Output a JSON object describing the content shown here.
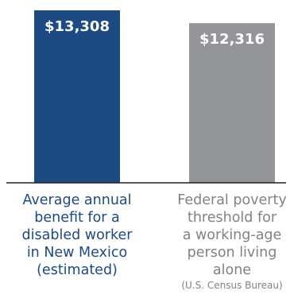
{
  "chart_data": {
    "type": "bar",
    "title": "",
    "xlabel": "",
    "ylabel": "",
    "ylim": [
      0,
      13308
    ],
    "grid": false,
    "legend": "none",
    "categories": [
      "Average annual benefit for a disabled worker in New Mexico (estimated)",
      "Federal poverty threshold for a working-age person living alone (U.S. Census Bureau)"
    ],
    "values": [
      13308,
      12316
    ],
    "data_labels": [
      "$13,308",
      "$12,316"
    ],
    "category_label_lines": [
      [
        "Average annual",
        "benefit for a",
        "disabled worker",
        "in New Mexico",
        "(estimated)"
      ],
      [
        "Federal poverty",
        "threshold for",
        "a working-age",
        "person living",
        "alone"
      ]
    ],
    "category_notes": [
      "",
      "(U.S. Census Bureau)"
    ],
    "colors": {
      "bars": [
        "#1d4a82",
        "#939598"
      ],
      "category_labels": [
        "#1d4a82",
        "#818285"
      ],
      "baseline": "#222222"
    }
  }
}
